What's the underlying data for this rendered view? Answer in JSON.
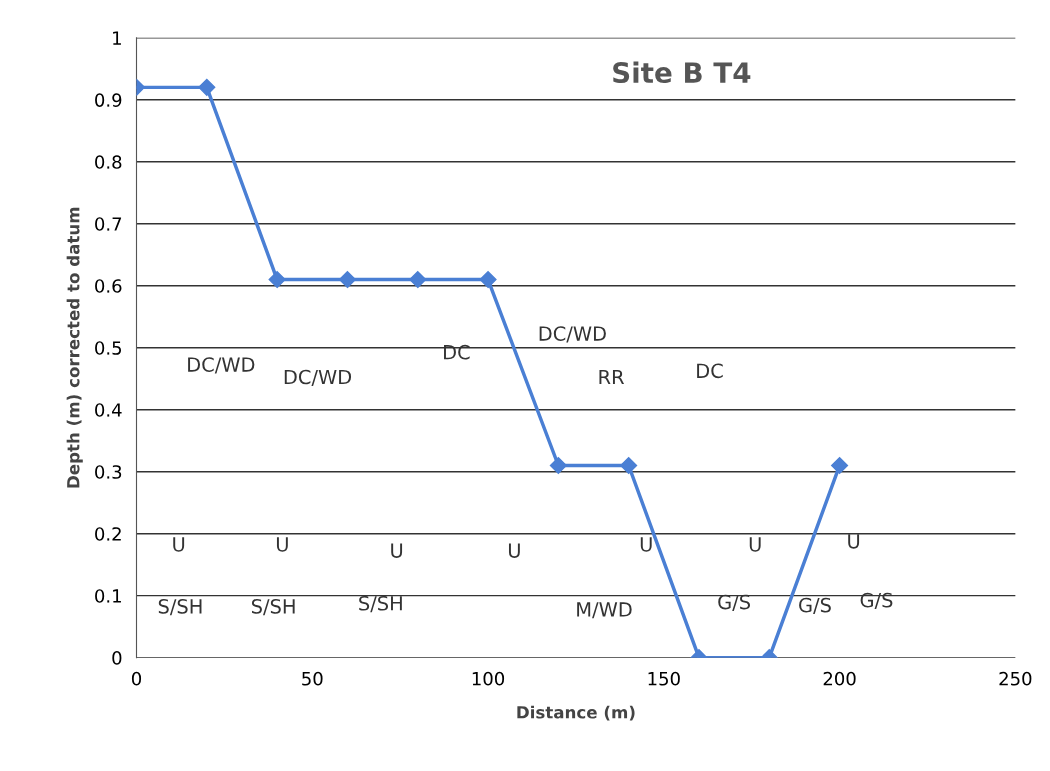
{
  "chart_data": {
    "type": "line",
    "title": "Site B T4",
    "xlabel": "Distance (m)",
    "ylabel": "Depth (m) corrected to datum",
    "x": [
      0,
      20,
      40,
      60,
      80,
      100,
      120,
      140,
      160,
      180,
      200
    ],
    "series": [
      {
        "color": "#4a7fd4",
        "values": [
          0.92,
          0.92,
          0.61,
          0.61,
          0.61,
          0.61,
          0.31,
          0.31,
          0,
          0,
          0.31
        ]
      }
    ],
    "xlim": [
      0,
      250
    ],
    "xticks": [
      0,
      50,
      100,
      150,
      200,
      250
    ],
    "ylim": [
      0,
      1
    ],
    "yticks": [
      0,
      {
        "value": 0.1,
        "label": "0.1"
      },
      {
        "value": 0.2,
        "label": "0.2"
      },
      {
        "value": 0.3,
        "label": "0.3"
      },
      {
        "value": 0.4,
        "label": "0.4"
      },
      {
        "value": 0.5,
        "label": "0.5"
      },
      {
        "value": 0.6,
        "label": "0.6"
      },
      {
        "value": 0.7,
        "label": "0.7"
      },
      {
        "value": 0.8,
        "label": "0.8"
      },
      {
        "value": 0.9,
        "label": "0.9"
      },
      1
    ],
    "grid": "y",
    "marker": "diamond",
    "line_style": "solid",
    "annotations": [
      "DC/WD",
      "DC/WD",
      "DC",
      "DC/WD",
      "RR",
      "DC",
      "U",
      "U",
      "U",
      "U",
      "U",
      "U",
      "U",
      "S/SH",
      "S/SH",
      "S/SH",
      "M/WD",
      "G/S",
      "G/S",
      "G/S"
    ]
  }
}
